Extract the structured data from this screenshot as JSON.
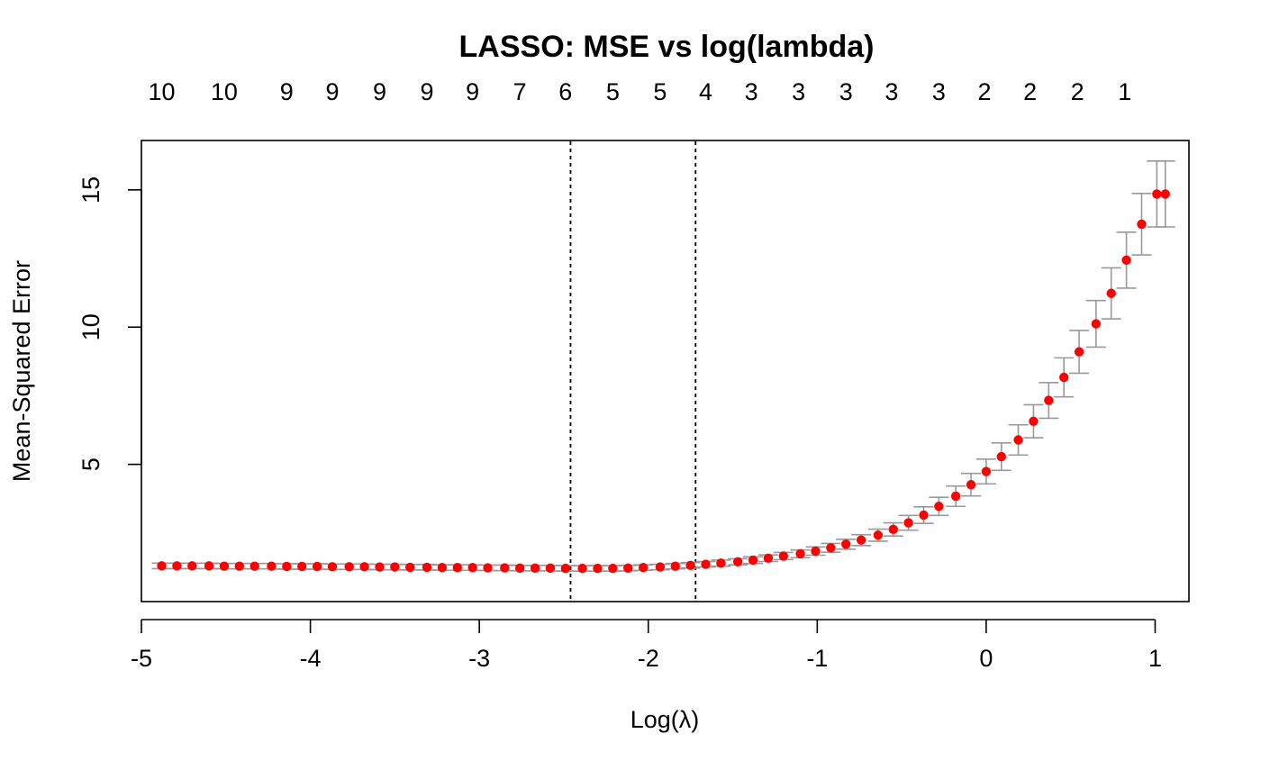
{
  "chart_data": {
    "type": "scatter",
    "title": "LASSO: MSE vs log(lambda)",
    "xlabel": "Log(λ)",
    "ylabel": "Mean-Squared Error",
    "xlim": [
      -5,
      1.2
    ],
    "ylim": [
      0,
      16.8
    ],
    "x_ticks": [
      -5,
      -4,
      -3,
      -2,
      -1,
      0,
      1
    ],
    "x_tick_labels": [
      "-5",
      "-4",
      "-3",
      "-2",
      "-1",
      "0",
      "1"
    ],
    "y_ticks": [
      5,
      10,
      15
    ],
    "y_tick_labels": [
      "5",
      "10",
      "15"
    ],
    "top_axis": {
      "x": [
        -4.88,
        -4.51,
        -4.14,
        -3.87,
        -3.59,
        -3.31,
        -3.04,
        -2.76,
        -2.49,
        -2.21,
        -1.93,
        -1.66,
        -1.39,
        -1.11,
        -0.83,
        -0.56,
        -0.28,
        -0.01,
        0.26,
        0.54,
        0.82
      ],
      "labels": [
        "10",
        "10",
        "9",
        "9",
        "9",
        "9",
        "9",
        "7",
        "6",
        "5",
        "5",
        "4",
        "3",
        "3",
        "3",
        "3",
        "3",
        "2",
        "2",
        "2",
        "1"
      ]
    },
    "vlines": [
      -2.46,
      -1.72
    ],
    "point_color": "#ff0000",
    "errorbar_color": "#999999",
    "series": [
      {
        "x": [
          -4.88,
          -4.79,
          -4.7,
          -4.6,
          -4.51,
          -4.42,
          -4.33,
          -4.23,
          -4.14,
          -4.05,
          -3.96,
          -3.87,
          -3.77,
          -3.68,
          -3.59,
          -3.5,
          -3.41,
          -3.31,
          -3.22,
          -3.13,
          -3.04,
          -2.95,
          -2.85,
          -2.76,
          -2.67,
          -2.58,
          -2.49,
          -2.39,
          -2.3,
          -2.21,
          -2.12,
          -2.03,
          -1.93,
          -1.84,
          -1.75,
          -1.66,
          -1.57,
          -1.47,
          -1.38,
          -1.29,
          -1.2,
          -1.1,
          -1.01,
          -0.92,
          -0.83,
          -0.74,
          -0.64,
          -0.55,
          -0.46,
          -0.37,
          -0.28,
          -0.18,
          -0.09,
          0.0,
          0.09,
          0.19,
          0.28,
          0.37,
          0.46,
          0.55,
          0.65,
          0.74,
          0.83,
          0.92,
          1.01,
          1.06
        ],
        "y": [
          1.3,
          1.3,
          1.3,
          1.3,
          1.29,
          1.29,
          1.29,
          1.29,
          1.28,
          1.28,
          1.28,
          1.27,
          1.27,
          1.27,
          1.26,
          1.26,
          1.25,
          1.25,
          1.24,
          1.24,
          1.24,
          1.23,
          1.23,
          1.22,
          1.22,
          1.22,
          1.21,
          1.21,
          1.21,
          1.21,
          1.22,
          1.24,
          1.26,
          1.29,
          1.32,
          1.36,
          1.4,
          1.45,
          1.51,
          1.58,
          1.66,
          1.74,
          1.84,
          1.96,
          2.09,
          2.24,
          2.42,
          2.63,
          2.87,
          3.15,
          3.47,
          3.84,
          4.26,
          4.74,
          5.28,
          5.89,
          6.57,
          7.33,
          8.17,
          9.1,
          10.12,
          11.23,
          12.44,
          13.75,
          14.85,
          14.85
        ],
        "err": [
          0.1,
          0.1,
          0.1,
          0.1,
          0.1,
          0.1,
          0.1,
          0.1,
          0.1,
          0.1,
          0.1,
          0.1,
          0.1,
          0.1,
          0.1,
          0.1,
          0.1,
          0.1,
          0.1,
          0.1,
          0.1,
          0.1,
          0.1,
          0.1,
          0.1,
          0.1,
          0.1,
          0.1,
          0.1,
          0.1,
          0.1,
          0.1,
          0.1,
          0.1,
          0.1,
          0.1,
          0.11,
          0.11,
          0.12,
          0.12,
          0.13,
          0.14,
          0.15,
          0.16,
          0.18,
          0.2,
          0.22,
          0.24,
          0.27,
          0.3,
          0.33,
          0.37,
          0.41,
          0.45,
          0.5,
          0.55,
          0.6,
          0.65,
          0.71,
          0.78,
          0.85,
          0.93,
          1.02,
          1.12,
          1.2,
          1.2
        ]
      }
    ]
  }
}
